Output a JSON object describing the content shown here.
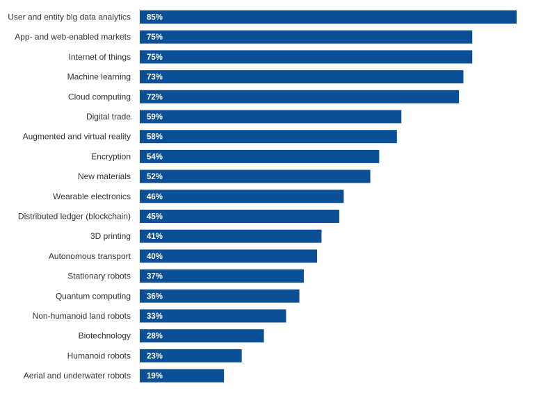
{
  "chart_data": {
    "type": "bar",
    "orientation": "horizontal",
    "categories": [
      "User and entity big data analytics",
      "App- and web-enabled markets",
      "Internet of things",
      "Machine learning",
      "Cloud computing",
      "Digital trade",
      "Augmented and virtual reality",
      "Encryption",
      "New materials",
      "Wearable electronics",
      "Distributed ledger (blockchain)",
      "3D printing",
      "Autonomous transport",
      "Stationary robots",
      "Quantum computing",
      "Non-humanoid land robots",
      "Biotechnology",
      "Humanoid robots",
      "Aerial and underwater robots"
    ],
    "values": [
      85,
      75,
      75,
      73,
      72,
      59,
      58,
      54,
      52,
      46,
      45,
      41,
      40,
      37,
      36,
      33,
      28,
      23,
      19
    ],
    "value_labels": [
      "85%",
      "75%",
      "75%",
      "73%",
      "72%",
      "59%",
      "58%",
      "54%",
      "52%",
      "46%",
      "45%",
      "41%",
      "40%",
      "37%",
      "36%",
      "33%",
      "28%",
      "23%",
      "19%"
    ],
    "title": "",
    "xlabel": "",
    "ylabel": "",
    "xlim": [
      0,
      85
    ],
    "grid": false,
    "legend": "none",
    "bar_color": "#0b4f96",
    "value_label_color": "#ffffff",
    "category_label_color": "#333333"
  }
}
